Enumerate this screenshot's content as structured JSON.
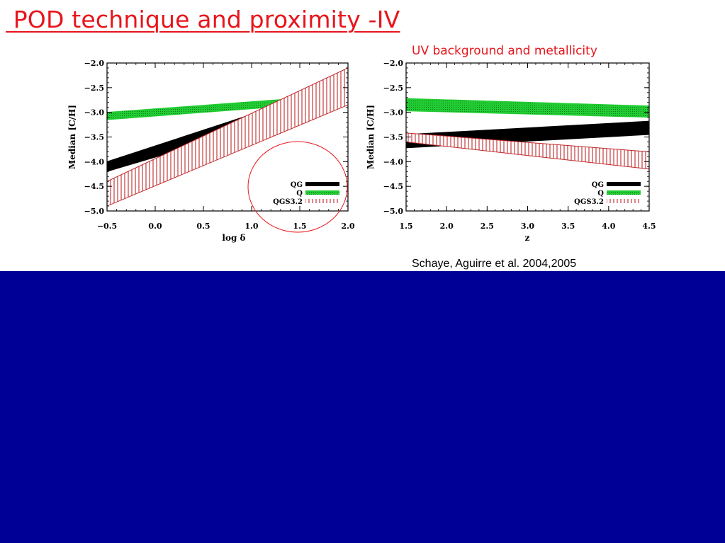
{
  "slide": {
    "title": " POD technique and proximity -IV",
    "subtitle": "UV background and metallicity",
    "citation": "Schaye, Aguirre et al. 2004,2005"
  },
  "colors": {
    "title": "#e8151b",
    "band": "#000096",
    "QG": "#000000",
    "Q": "#22cc33",
    "QGS3.2": "#c0282a",
    "highlight_circle": "#e8151b"
  },
  "chart_data": [
    {
      "type": "area",
      "xlabel": "log δ",
      "ylabel": "Median [C/H]",
      "xlim": [
        -0.5,
        2.0
      ],
      "ylim": [
        -5.0,
        -2.0
      ],
      "xticks": [
        "−0.5",
        "0.0",
        "0.5",
        "1.0",
        "1.5",
        "2.0"
      ],
      "yticks": [
        "−2.0",
        "−2.5",
        "−3.0",
        "−3.5",
        "−4.0",
        "−4.5",
        "−5.0"
      ],
      "legend_position": "bottom-right",
      "highlight": "circle around the right half of the plot",
      "series": [
        {
          "name": "QG",
          "style": "solid",
          "color": "#000000",
          "x": [
            -0.5,
            2.0
          ],
          "lower": [
            -4.2,
            -2.75
          ],
          "upper": [
            -4.0,
            -2.4
          ]
        },
        {
          "name": "Q",
          "style": "dotted",
          "color": "#22cc33",
          "x": [
            -0.5,
            2.0
          ],
          "lower": [
            -3.15,
            -2.78
          ],
          "upper": [
            -3.0,
            -2.64
          ]
        },
        {
          "name": "QGS3.2",
          "style": "hatched",
          "color": "#c0282a",
          "x": [
            -0.5,
            2.0
          ],
          "lower": [
            -4.9,
            -2.85
          ],
          "upper": [
            -4.4,
            -2.1
          ]
        }
      ]
    },
    {
      "type": "area",
      "xlabel": "z",
      "ylabel": "Median [C/H]",
      "xlim": [
        1.5,
        4.5
      ],
      "ylim": [
        -5.0,
        -2.0
      ],
      "xticks": [
        "1.5",
        "2.0",
        "2.5",
        "3.0",
        "3.5",
        "4.0",
        "4.5"
      ],
      "yticks": [
        "−2.0",
        "−2.5",
        "−3.0",
        "−3.5",
        "−4.0",
        "−4.5",
        "−5.0"
      ],
      "legend_position": "bottom-right",
      "series": [
        {
          "name": "QG",
          "style": "solid",
          "color": "#000000",
          "x": [
            1.5,
            4.5
          ],
          "lower": [
            -3.72,
            -3.45
          ],
          "upper": [
            -3.45,
            -3.18
          ]
        },
        {
          "name": "Q",
          "style": "dotted",
          "color": "#22cc33",
          "x": [
            1.5,
            4.5
          ],
          "lower": [
            -2.97,
            -3.1
          ],
          "upper": [
            -2.72,
            -2.87
          ]
        },
        {
          "name": "QGS3.2",
          "style": "hatched",
          "color": "#c0282a",
          "x": [
            1.5,
            4.5
          ],
          "lower": [
            -3.6,
            -4.15
          ],
          "upper": [
            -3.42,
            -3.8
          ]
        }
      ]
    }
  ]
}
